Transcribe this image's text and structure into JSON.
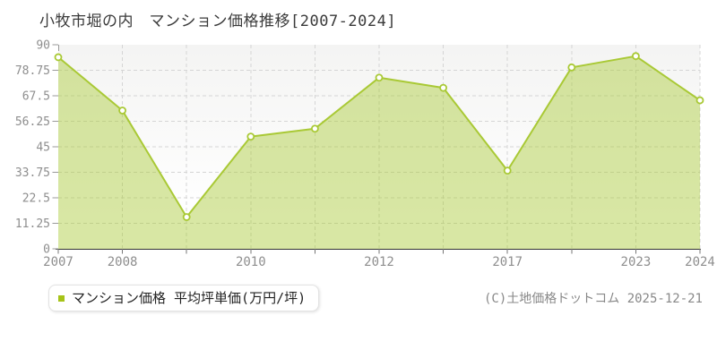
{
  "page": {
    "title": "小牧市堀の内　マンション価格推移[2007-2024]",
    "copyright": "(C)土地価格ドットコム 2025-12-21"
  },
  "legend": {
    "marker_color": "#a6c318",
    "label": "マンション価格 平均坪単価(万円/坪)"
  },
  "colors": {
    "line": "#a9c935",
    "area_fill": "rgba(169,201,53,0.45)",
    "marker_fill": "#ffffff",
    "grid": "#d5d5d5",
    "axis_line": "#333333",
    "tick": "#999999",
    "x_tick": "#777777",
    "tick_label": "#8e8e8e",
    "title_text": "#3a3a3a",
    "legend_text": "#222222",
    "copyright_text": "#888888",
    "plot_bg_top": "#f4f4f3",
    "plot_bg_bottom": "#ffffff"
  },
  "chart_data": {
    "type": "area",
    "title": "小牧市堀の内　マンション価格推移[2007-2024]",
    "series_name": "マンション価格 平均坪単価(万円/坪)",
    "categories": [
      "2007",
      "2008",
      "",
      "2010",
      "",
      "2012",
      "",
      "2017",
      "",
      "2023",
      "2024"
    ],
    "values": [
      84.5,
      61,
      14,
      49.5,
      53,
      75.5,
      71,
      34.5,
      80,
      85,
      65.5
    ],
    "visible_x_tick_labels": [
      "2007",
      "2008",
      "2010",
      "2012",
      "2017",
      "2023",
      "2024"
    ],
    "y_ticks": [
      0,
      11.25,
      22.5,
      33.75,
      45,
      56.25,
      67.5,
      78.75,
      90
    ],
    "y_tick_labels": [
      "0",
      "11.25",
      "22.5",
      "33.75",
      "45",
      "56.25",
      "67.5",
      "78.75",
      "90"
    ],
    "ylim": [
      0,
      90
    ],
    "xlabel": "",
    "ylabel": "",
    "grid": "dashed",
    "legend_position": "bottom-left",
    "marker": "circle-open"
  }
}
